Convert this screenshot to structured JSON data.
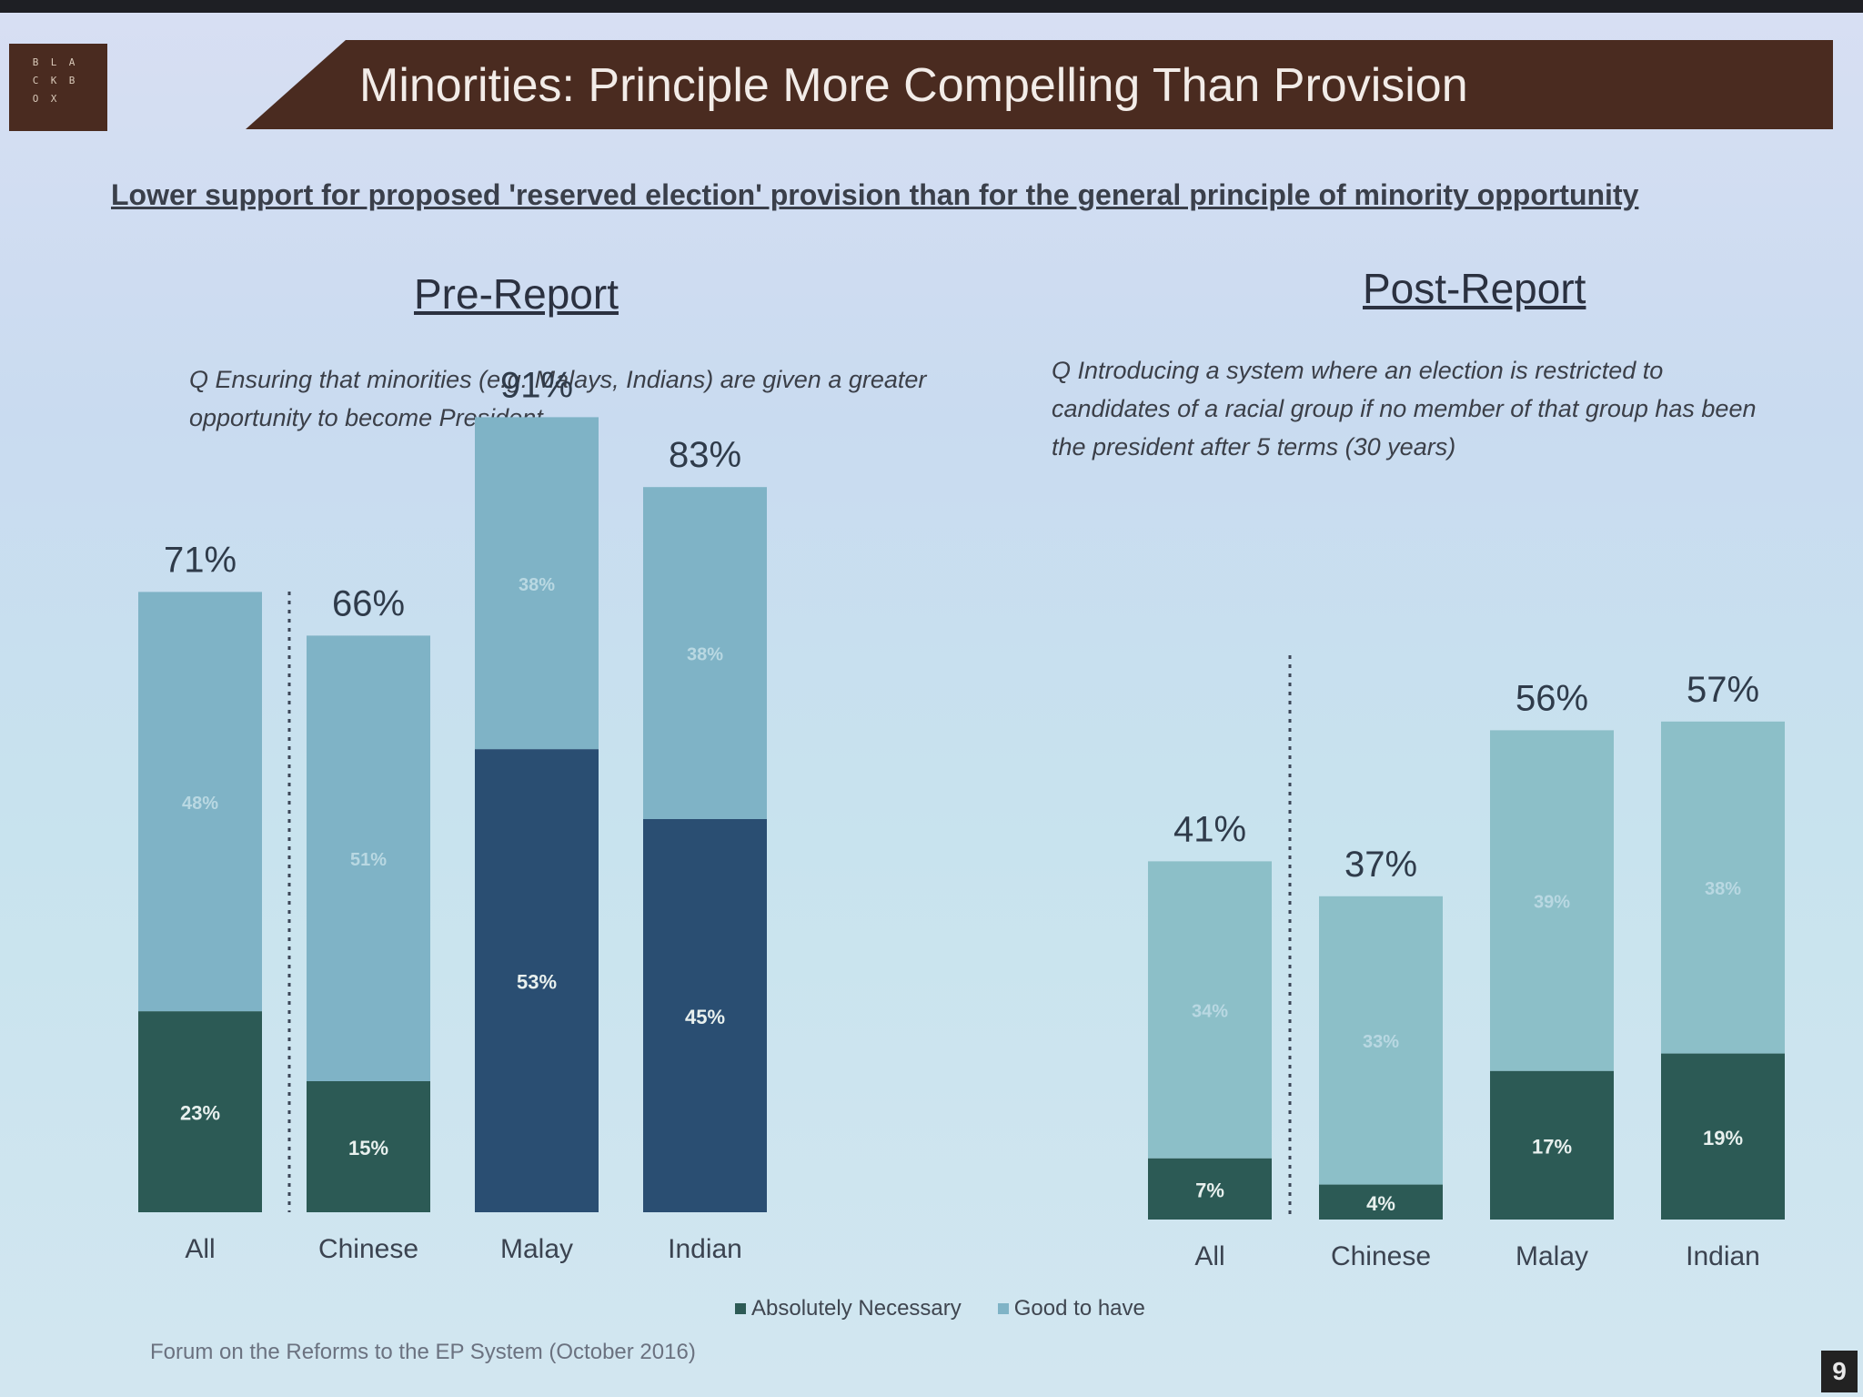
{
  "slide": {
    "logo_letters": [
      "B",
      "L",
      "A",
      "C",
      "K",
      "B",
      "O",
      "X",
      ""
    ],
    "title": "Minorities:  Principle More Compelling Than Provision",
    "subtitle": "Lower support for proposed 'reserved election' provision than for the general principle of minority opportunity",
    "source": "Forum on the Reforms to the EP System (October 2016)",
    "page_number": "9"
  },
  "colors": {
    "absolutely_necessary": "#2c5a55",
    "absolutely_necessary_malay_indian": "#2a4e72",
    "good_to_have": "#7fb3c6",
    "good_to_have_post": "#8cbfc8",
    "divider": "#3c4657",
    "text_dark": "#2f3b4a"
  },
  "legend": {
    "absolutely_necessary": "Absolutely Necessary",
    "good_to_have": "Good to have"
  },
  "chart_data": [
    {
      "type": "bar",
      "stacked": true,
      "title": "Pre-Report",
      "question": "Q  Ensuring that minorities (e.g. Malays, Indians) are given a greater opportunity to become President",
      "categories": [
        "All",
        "Chinese",
        "Malay",
        "Indian"
      ],
      "series": [
        {
          "name": "Absolutely Necessary",
          "values": [
            23,
            15,
            53,
            45
          ]
        },
        {
          "name": "Good to have",
          "values": [
            48,
            51,
            38,
            38
          ]
        }
      ],
      "totals": [
        71,
        66,
        91,
        83
      ],
      "ylim": [
        0,
        100
      ],
      "legend_position": "bottom"
    },
    {
      "type": "bar",
      "stacked": true,
      "title": "Post-Report",
      "question": "Q  Introducing a system where an election is restricted to candidates of a racial group if no member of that group has been the president after 5 terms (30 years)",
      "categories": [
        "All",
        "Chinese",
        "Malay",
        "Indian"
      ],
      "series": [
        {
          "name": "Absolutely Necessary",
          "values": [
            7,
            4,
            17,
            19
          ]
        },
        {
          "name": "Good to have",
          "values": [
            34,
            33,
            39,
            38
          ]
        }
      ],
      "totals": [
        41,
        37,
        56,
        57
      ],
      "ylim": [
        0,
        100
      ],
      "legend_position": "bottom"
    }
  ]
}
